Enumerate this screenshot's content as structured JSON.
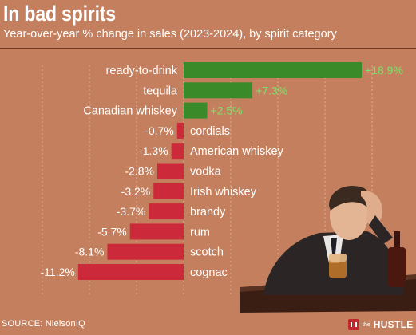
{
  "header": {
    "title": "In bad spirits",
    "subtitle": "Year-over-year % change in sales (2023-2024), by spirit category"
  },
  "footer": {
    "source": "SOURCE: NielsonIQ",
    "brand_prefix": "the",
    "brand_name": "HUSTLE"
  },
  "colors": {
    "background": "#c4805e",
    "positive_bar": "#3a8a2a",
    "negative_bar": "#cc2a3a",
    "positive_label": "#7ee06a",
    "negative_label": "#ffffff",
    "grid": "#e8c2ad"
  },
  "chart_data": {
    "type": "bar",
    "orientation": "horizontal",
    "title": "In bad spirits",
    "subtitle": "Year-over-year % change in sales (2023-2024), by spirit category",
    "categories": [
      "ready-to-drink",
      "tequila",
      "Canadian whiskey",
      "cordials",
      "American whiskey",
      "vodka",
      "Irish whiskey",
      "brandy",
      "rum",
      "scotch",
      "cognac"
    ],
    "values": [
      18.9,
      7.3,
      2.5,
      -0.7,
      -1.3,
      -2.8,
      -3.2,
      -3.7,
      -5.7,
      -8.1,
      -11.2
    ],
    "value_labels": [
      "+18.9%",
      "+7.3%",
      "+2.5%",
      "-0.7%",
      "-1.3%",
      "-2.8%",
      "-3.2%",
      "-3.7%",
      "-5.7%",
      "-8.1%",
      "-11.2%"
    ],
    "xlim": [
      -12,
      22
    ],
    "grid": true,
    "unit": "%"
  }
}
